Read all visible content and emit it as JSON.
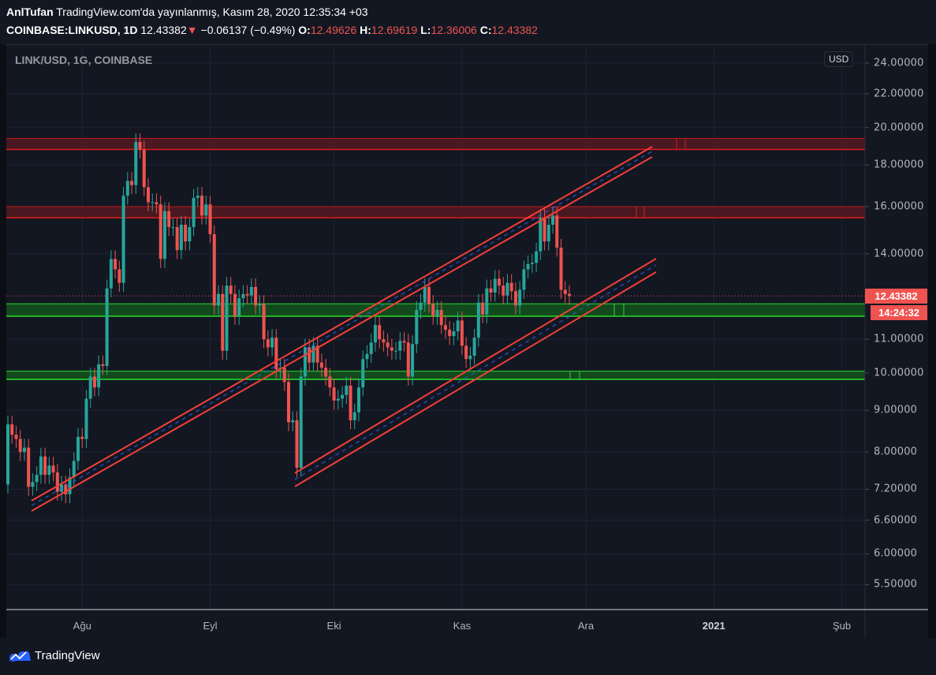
{
  "header": {
    "author": "AnlTufan",
    "published": "TradingView.com'da yayınlanmış, Kasım 28, 2020 12:35:34 +03",
    "symbol": "COINBASE:LINKUSD, 1D",
    "last": "12.43382",
    "change": "−0.06137 (−0.49%)",
    "o_label": "O:",
    "o": "12.49626",
    "h_label": "H:",
    "h": "12.69619",
    "l_label": "L:",
    "l": "12.36006",
    "c_label": "C:",
    "c": "12.43382"
  },
  "chart_title": "LINK/USD, 1G, COINBASE",
  "currency_button": "USD",
  "price_label": "12.43382",
  "countdown_label": "14:24:32",
  "brand": "TradingView",
  "colors": {
    "up": "#26a69a",
    "down": "#ef5350",
    "bg": "#131722",
    "grid": "#1f2330",
    "channel": "#f23f3a",
    "support": "#2bd92b",
    "resistance": "#e01a1a"
  },
  "chart_data": {
    "type": "candlestick",
    "scale": "log",
    "interval": "1D",
    "first_date": "2020-07-14",
    "last_date": "2020-11-28",
    "first_open": 7.3,
    "closes": [
      8.65,
      8.4,
      8.3,
      8.0,
      8.1,
      7.25,
      7.35,
      7.5,
      7.9,
      7.5,
      7.7,
      7.55,
      7.15,
      7.3,
      7.1,
      7.45,
      7.8,
      8.35,
      8.3,
      9.3,
      9.9,
      9.6,
      10.25,
      10.2,
      12.7,
      13.8,
      13.4,
      12.9,
      16.5,
      17.2,
      17.0,
      19.2,
      18.8,
      16.9,
      16.2,
      16.2,
      16.1,
      13.8,
      15.8,
      15.1,
      15.1,
      14.15,
      15.2,
      14.5,
      15.1,
      16.4,
      16.5,
      15.6,
      16.1,
      14.8,
      12.1,
      12.5,
      10.65,
      12.8,
      12.5,
      11.75,
      12.35,
      12.5,
      12.45,
      12.75,
      12.1,
      12.15,
      11.0,
      10.75,
      11.05,
      10.1,
      10.15,
      9.75,
      8.7,
      8.75,
      7.65,
      9.9,
      10.75,
      10.3,
      10.8,
      10.3,
      10.15,
      9.9,
      9.6,
      9.25,
      9.3,
      9.4,
      9.65,
      8.75,
      8.95,
      9.6,
      10.4,
      10.55,
      10.9,
      11.45,
      11.0,
      10.9,
      10.75,
      10.65,
      10.65,
      10.95,
      10.9,
      9.9,
      10.85,
      11.95,
      12.2,
      12.75,
      12.15,
      11.75,
      11.95,
      11.45,
      11.3,
      11.1,
      11.25,
      11.6,
      10.8,
      10.4,
      10.5,
      11.05,
      12.2,
      11.8,
      12.7,
      12.55,
      13.05,
      12.8,
      12.45,
      12.9,
      12.6,
      12.1,
      12.65,
      13.4,
      13.6,
      13.65,
      14.1,
      15.5,
      14.5,
      15.2,
      15.6,
      14.25,
      12.65,
      12.5,
      12.43382
    ],
    "y_ticks": [
      {
        "value": 24,
        "label": "24.00000"
      },
      {
        "value": 22,
        "label": "22.00000"
      },
      {
        "value": 20,
        "label": "20.00000"
      },
      {
        "value": 18,
        "label": "18.00000"
      },
      {
        "value": 16,
        "label": "16.00000"
      },
      {
        "value": 14,
        "label": "14.00000"
      },
      {
        "value": 11,
        "label": "11.00000"
      },
      {
        "value": 10,
        "label": "10.00000"
      },
      {
        "value": 9,
        "label": "9.00000"
      },
      {
        "value": 8,
        "label": "8.00000"
      },
      {
        "value": 7.2,
        "label": "7.20000"
      },
      {
        "value": 6.6,
        "label": "6.60000"
      },
      {
        "value": 6,
        "label": "6.00000"
      },
      {
        "value": 5.5,
        "label": "5.50000"
      }
    ],
    "x_ticks": [
      {
        "date": "2020-08-01",
        "label": "Ağu",
        "bold": false
      },
      {
        "date": "2020-09-01",
        "label": "Eyl",
        "bold": false
      },
      {
        "date": "2020-10-01",
        "label": "Eki",
        "bold": false
      },
      {
        "date": "2020-11-01",
        "label": "Kas",
        "bold": false
      },
      {
        "date": "2020-12-01",
        "label": "Ara",
        "bold": false
      },
      {
        "date": "2021-01-01",
        "label": "2021",
        "bold": true
      },
      {
        "date": "2021-02-01",
        "label": "Şub",
        "bold": false
      }
    ],
    "zones": [
      {
        "kind": "resistance",
        "top": 19.4,
        "bottom": 18.8
      },
      {
        "kind": "resistance",
        "top": 16.0,
        "bottom": 15.5
      },
      {
        "kind": "support",
        "top": 12.16,
        "bottom": 11.74
      },
      {
        "kind": "support",
        "top": 10.05,
        "bottom": 9.82
      }
    ],
    "current_price": 12.43382
  }
}
